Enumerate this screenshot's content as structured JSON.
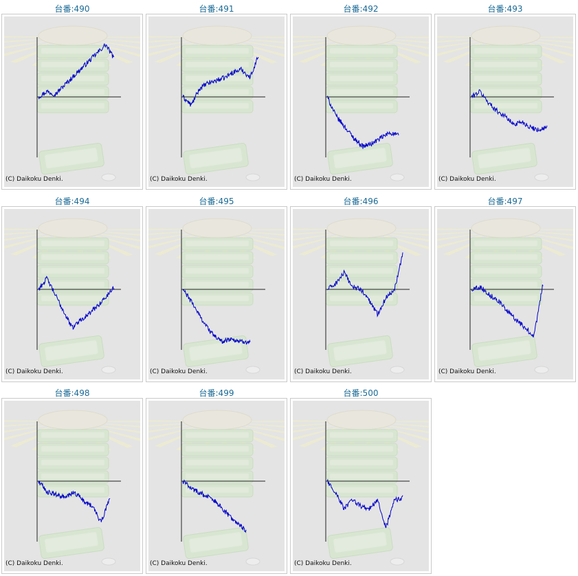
{
  "copyright": "(C) Daikoku Denki.",
  "colors": {
    "title": "#1a6a96",
    "line": "#0000c8",
    "axis": "#222222",
    "panel": "#e4e4e4"
  },
  "chart_data": [
    {
      "type": "line",
      "title": "台番:490",
      "trend": [
        0.0,
        0.1,
        0.05,
        0.2,
        0.35,
        0.5,
        0.65,
        0.8,
        0.95,
        0.7
      ]
    },
    {
      "type": "line",
      "title": "台番:491",
      "trend": [
        0.0,
        -0.15,
        0.15,
        0.25,
        0.3,
        0.35,
        0.45,
        0.5,
        0.35,
        0.75
      ]
    },
    {
      "type": "line",
      "title": "台番:492",
      "trend": [
        0.0,
        -0.35,
        -0.55,
        -0.75,
        -0.9,
        -0.85,
        -0.75,
        -0.65,
        -0.7
      ]
    },
    {
      "type": "line",
      "title": "台番:493",
      "trend": [
        0.0,
        0.1,
        -0.1,
        -0.25,
        -0.35,
        -0.5,
        -0.45,
        -0.55,
        -0.6,
        -0.55
      ]
    },
    {
      "type": "line",
      "title": "台番:494",
      "trend": [
        0.0,
        0.2,
        -0.1,
        -0.4,
        -0.7,
        -0.55,
        -0.45,
        -0.3,
        -0.15,
        0.05
      ]
    },
    {
      "type": "line",
      "title": "台番:495",
      "trend": [
        0.0,
        -0.25,
        -0.55,
        -0.8,
        -0.95,
        -0.9,
        -0.95,
        -0.95
      ]
    },
    {
      "type": "line",
      "title": "台番:496",
      "trend": [
        0.0,
        0.1,
        0.3,
        0.05,
        0.0,
        -0.2,
        -0.45,
        -0.15,
        0.0,
        0.65
      ]
    },
    {
      "type": "line",
      "title": "台番:497",
      "trend": [
        0.0,
        0.05,
        -0.1,
        -0.2,
        -0.4,
        -0.55,
        -0.7,
        -0.85,
        0.1
      ]
    },
    {
      "type": "line",
      "title": "台番:498",
      "trend": [
        0.0,
        -0.2,
        -0.25,
        -0.3,
        -0.2,
        -0.35,
        -0.45,
        -0.75,
        -0.3
      ]
    },
    {
      "type": "line",
      "title": "台番:499",
      "trend": [
        0.0,
        -0.15,
        -0.25,
        -0.35,
        -0.55,
        -0.75,
        -0.9
      ]
    },
    {
      "type": "line",
      "title": "台番:500",
      "trend": [
        0.0,
        -0.2,
        -0.5,
        -0.35,
        -0.45,
        -0.5,
        -0.35,
        -0.85,
        -0.35,
        -0.3
      ]
    }
  ]
}
